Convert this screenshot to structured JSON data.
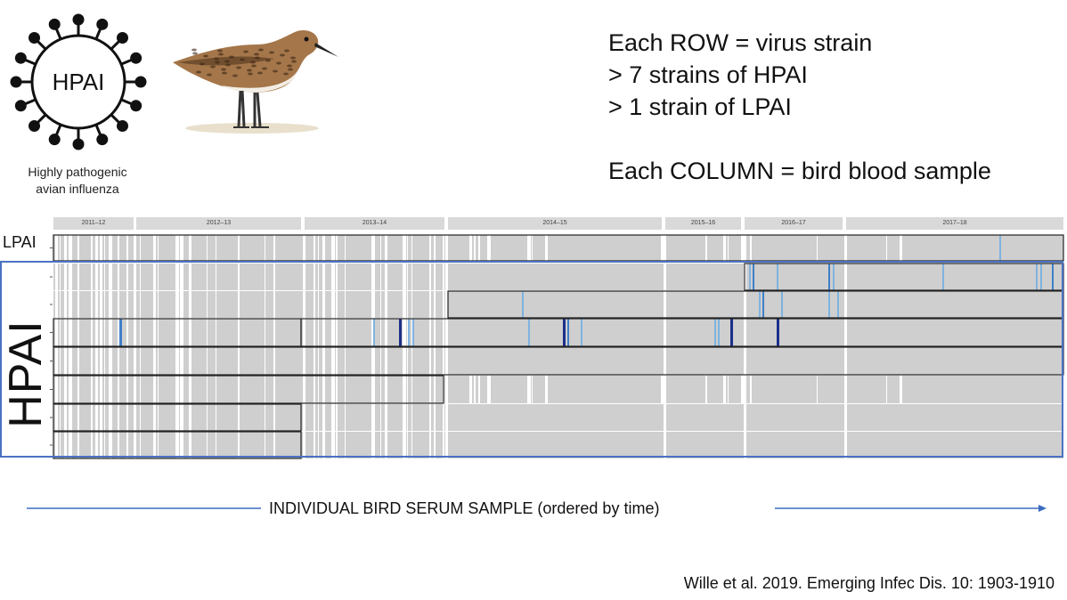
{
  "virus_icon": {
    "text": "HPAI",
    "icon": "virus-icon"
  },
  "bird_image": {
    "icon": "sandpiper-illustration"
  },
  "virus_caption": [
    "Highly pathogenic",
    "avian influenza"
  ],
  "notes": [
    "Each ROW = virus strain",
    "> 7 strains of HPAI",
    "> 1 strain of LPAI",
    "",
    "Each COLUMN = bird blood sample"
  ],
  "x_caption": "INDIVIDUAL BIRD SERUM SAMPLE (ordered by time)",
  "citation": "Wille et al. 2019. Emerging Infec Dis. 10: 1903-1910",
  "colors": {
    "sampled": "#cfcfcf",
    "gap": "#ffffff",
    "positive_light": "#7fb3e0",
    "positive_mid": "#3f7fc8",
    "positive_dark": "#1c2f8a",
    "frame": "#4a72c2"
  },
  "chart_data": {
    "type": "heatmap",
    "title": "",
    "xlabel": "INDIVIDUAL BIRD SERUM SAMPLE (ordered by time)",
    "ylabel": "",
    "seasons": [
      "2011–12",
      "2012–13",
      "2013–14",
      "2014–15",
      "2015–16",
      "2016–17",
      "2017–18"
    ],
    "row_groups": [
      {
        "label": "LPAI",
        "rows": 1
      },
      {
        "label": "HPAI",
        "rows": 7
      }
    ],
    "legend": "none"
  }
}
